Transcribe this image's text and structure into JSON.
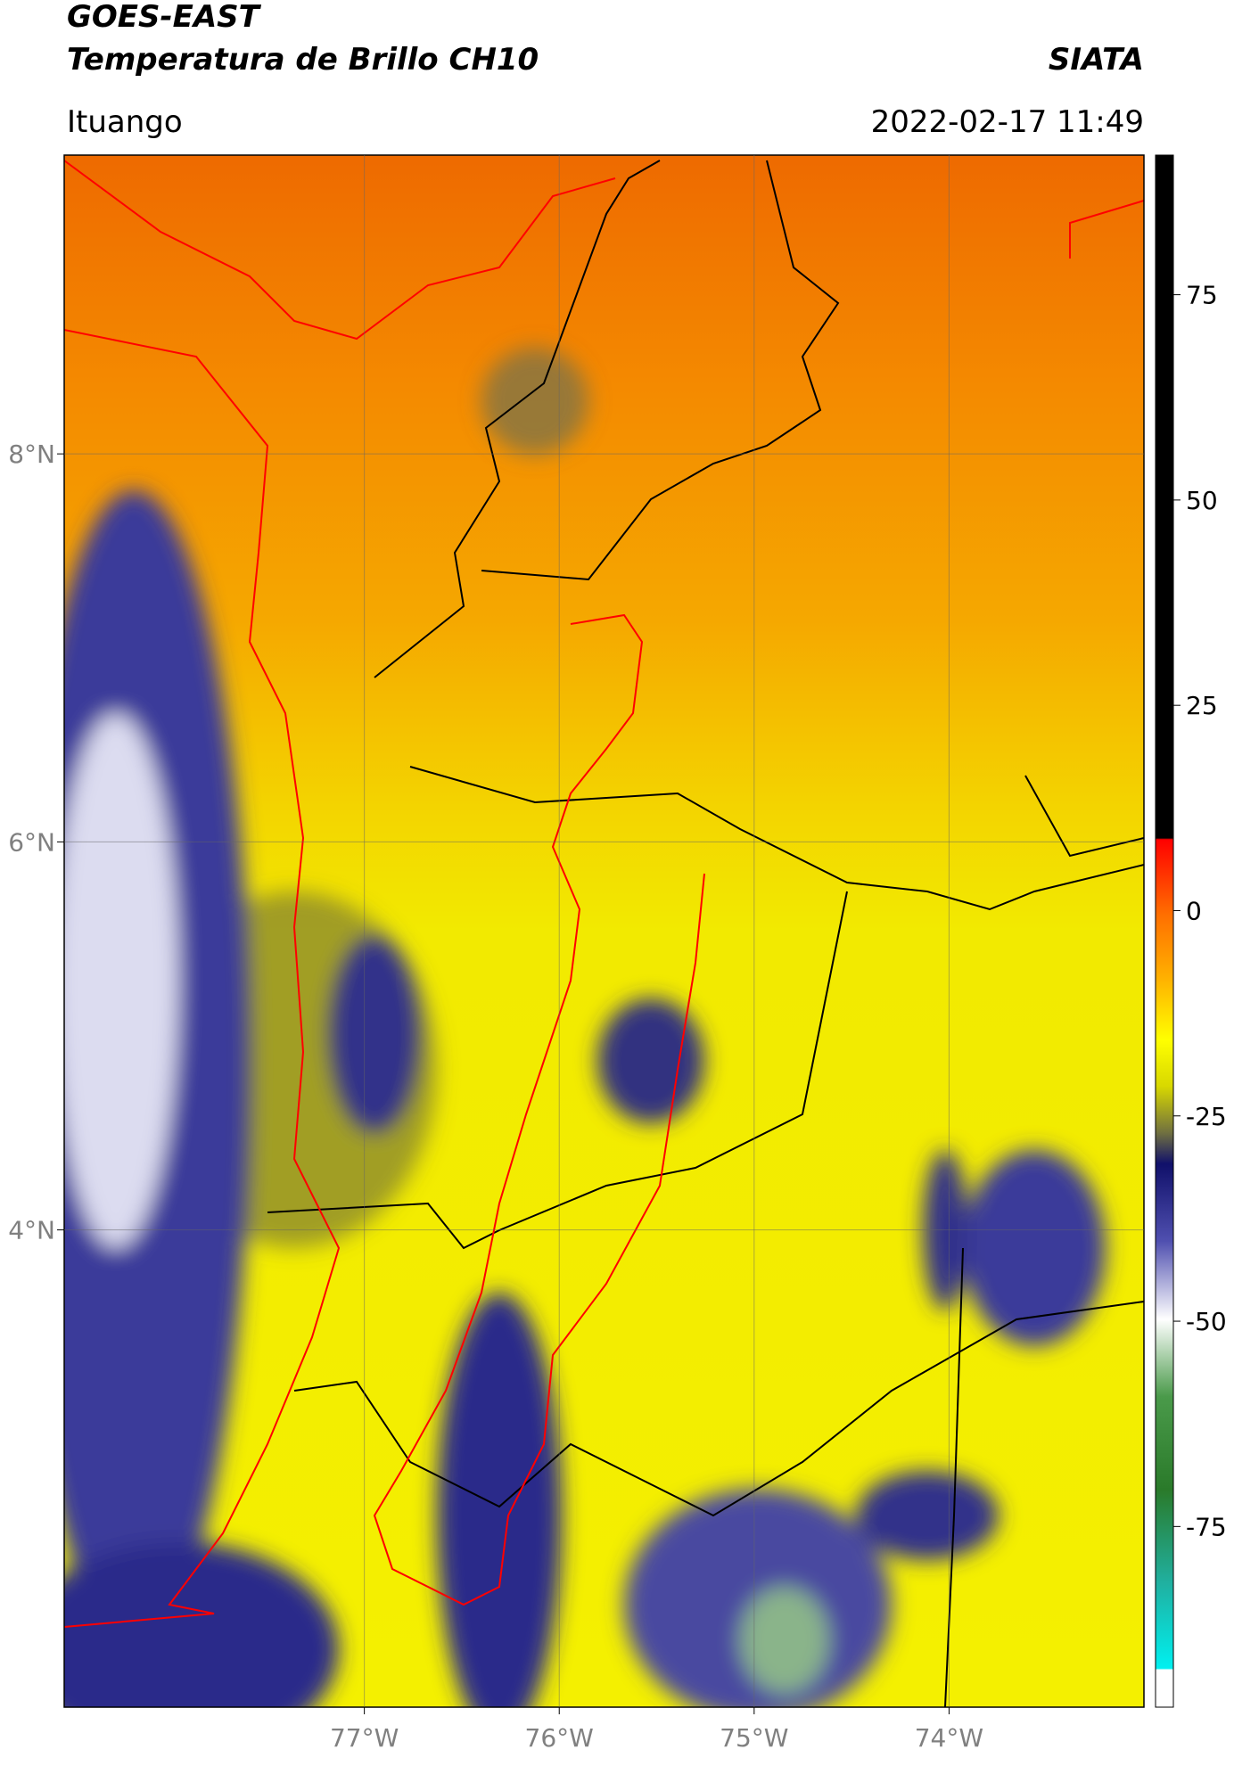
{
  "header": {
    "title": "GOES-EAST",
    "subtitle": "Temperatura de Brillo CH10",
    "source": "SIATA",
    "region": "Ituango",
    "datetime": "2022-02-17 11:49"
  },
  "map": {
    "xlim": [
      -78.54,
      -73.0
    ],
    "ylim": [
      1.54,
      9.54
    ],
    "lat_ticks": [
      {
        "value": 8,
        "label": "8°N"
      },
      {
        "value": 6,
        "label": "6°N"
      },
      {
        "value": 4,
        "label": "4°N"
      }
    ],
    "lon_ticks": [
      {
        "value": -77,
        "label": "77°W"
      },
      {
        "value": -76,
        "label": "76°W"
      },
      {
        "value": -75,
        "label": "75°W"
      },
      {
        "value": -74,
        "label": "74°W"
      }
    ],
    "grid": true
  },
  "colorbar": {
    "lim": [
      -97,
      92
    ],
    "ticks": [
      75,
      50,
      25,
      0,
      -25,
      -50,
      -75
    ]
  }
}
